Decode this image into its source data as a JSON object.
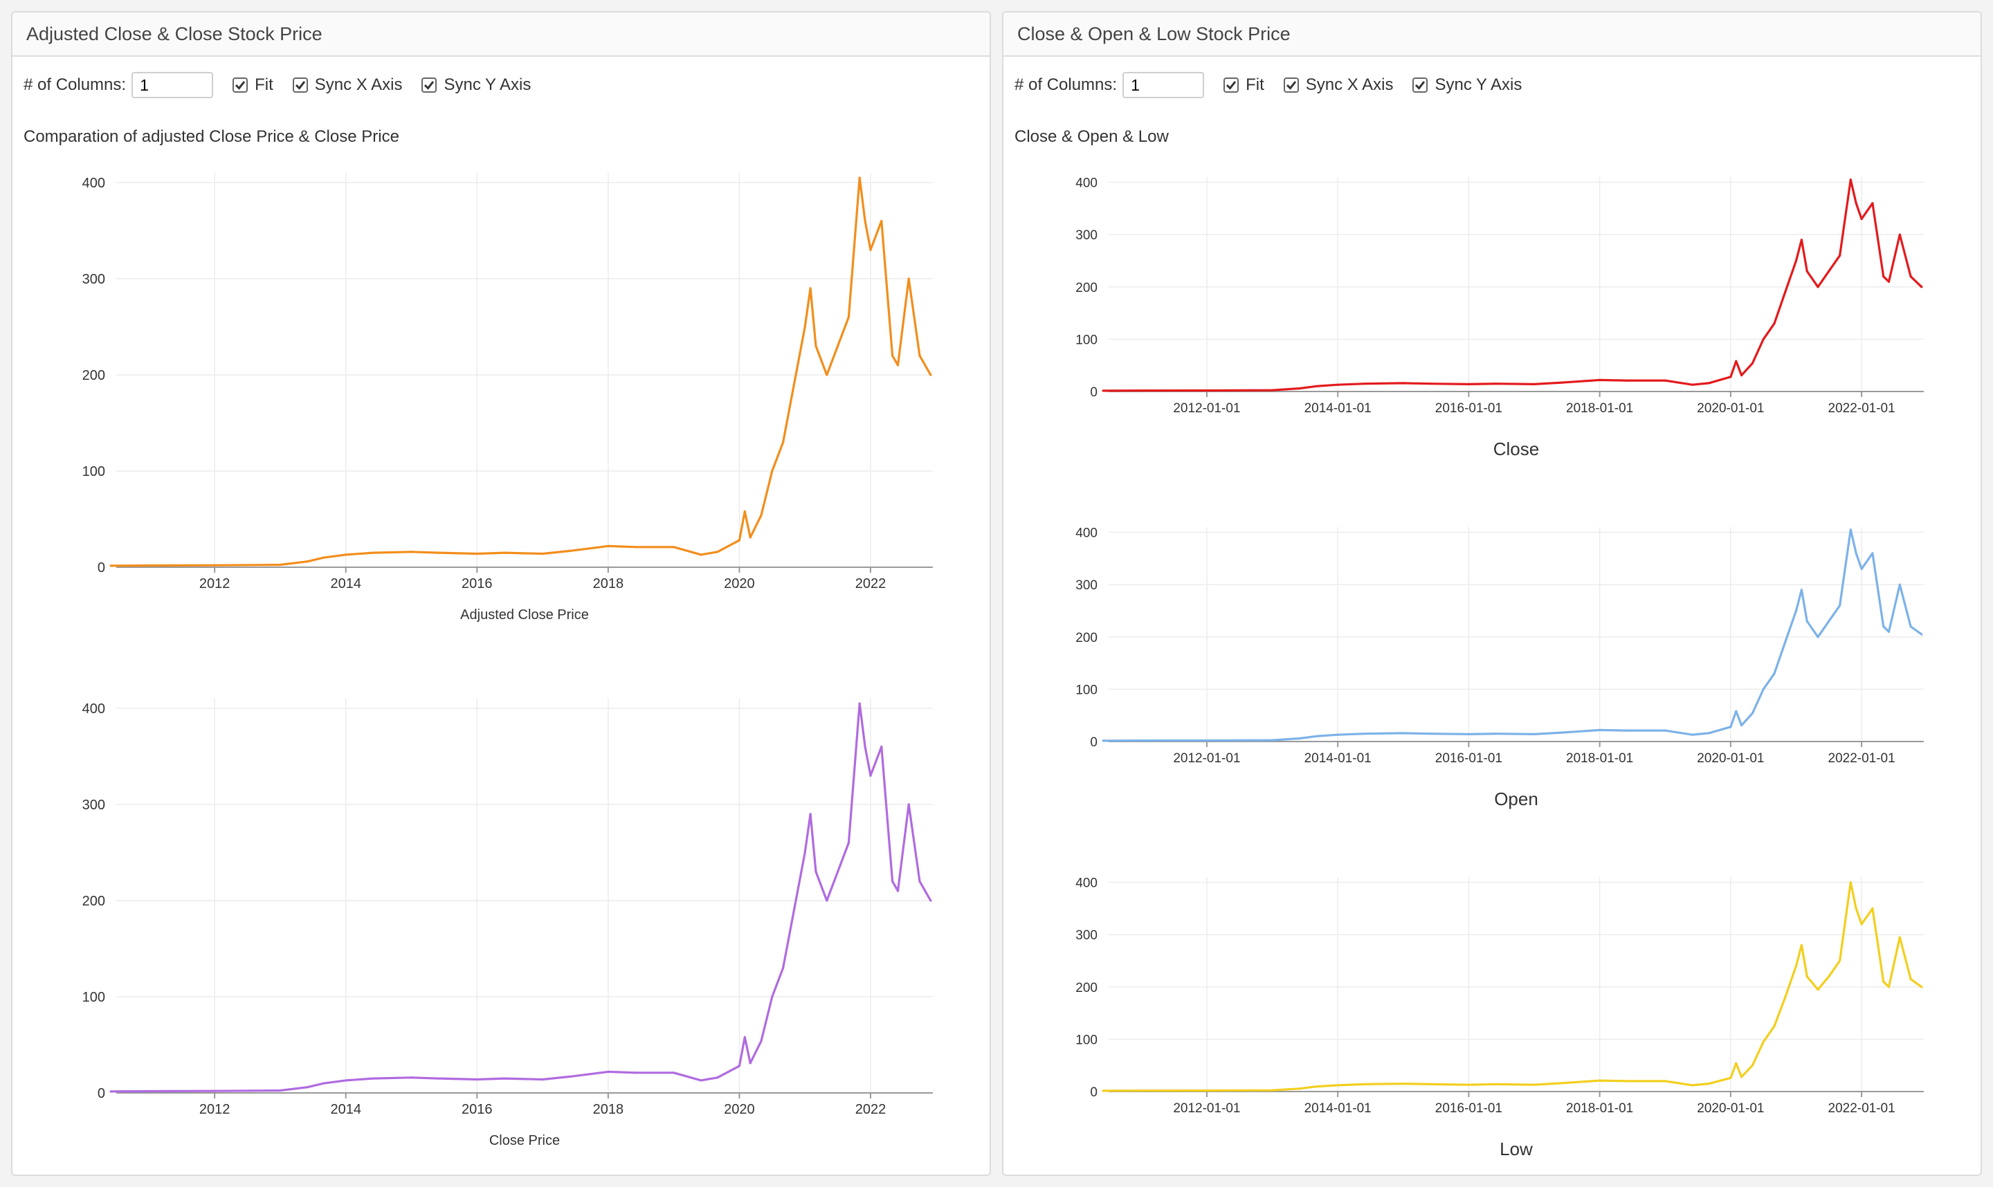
{
  "left_panel": {
    "title": "Adjusted Close & Close Stock Price",
    "columns_label": "# of Columns:",
    "columns_value": "1",
    "fit_label": "Fit",
    "sync_x_label": "Sync X Axis",
    "sync_y_label": "Sync Y Axis",
    "chart_title": "Comparation of adjusted Close Price & Close Price"
  },
  "right_panel": {
    "title": "Close & Open & Low Stock Price",
    "columns_label": "# of Columns:",
    "columns_value": "1",
    "fit_label": "Fit",
    "sync_x_label": "Sync X Axis",
    "sync_y_label": "Sync Y Axis",
    "chart_title": "Close & Open & Low"
  },
  "chart_data": [
    {
      "type": "line",
      "name": "Adjusted Close Price",
      "color": "#f28e1c",
      "x": [
        "2010-06",
        "2011-01",
        "2012-01",
        "2013-01",
        "2013-06",
        "2013-09",
        "2014-01",
        "2014-06",
        "2015-01",
        "2015-06",
        "2016-01",
        "2016-06",
        "2017-01",
        "2017-06",
        "2018-01",
        "2018-06",
        "2019-01",
        "2019-06",
        "2019-09",
        "2020-01",
        "2020-02",
        "2020-03",
        "2020-05",
        "2020-07",
        "2020-09",
        "2020-11",
        "2021-01",
        "2021-02",
        "2021-03",
        "2021-05",
        "2021-07",
        "2021-09",
        "2021-11",
        "2021-12",
        "2022-01",
        "2022-03",
        "2022-05",
        "2022-06",
        "2022-08",
        "2022-10",
        "2022-12"
      ],
      "y": [
        1.5,
        1.8,
        2,
        2.5,
        6,
        10,
        13,
        15,
        16,
        15,
        14,
        15,
        14,
        17,
        22,
        21,
        21,
        13,
        16,
        28,
        58,
        31,
        54,
        100,
        130,
        190,
        250,
        290,
        230,
        200,
        230,
        260,
        405,
        360,
        330,
        360,
        220,
        210,
        300,
        220,
        200
      ],
      "x_ticks": [
        "2012",
        "2014",
        "2016",
        "2018",
        "2020",
        "2022"
      ],
      "y_ticks": [
        0,
        100,
        200,
        300,
        400
      ],
      "xlabel": "Adjusted Close Price",
      "ylim": [
        0,
        410
      ]
    },
    {
      "type": "line",
      "name": "Close Price",
      "color": "#b06be0",
      "x": [
        "2010-06",
        "2011-01",
        "2012-01",
        "2013-01",
        "2013-06",
        "2013-09",
        "2014-01",
        "2014-06",
        "2015-01",
        "2015-06",
        "2016-01",
        "2016-06",
        "2017-01",
        "2017-06",
        "2018-01",
        "2018-06",
        "2019-01",
        "2019-06",
        "2019-09",
        "2020-01",
        "2020-02",
        "2020-03",
        "2020-05",
        "2020-07",
        "2020-09",
        "2020-11",
        "2021-01",
        "2021-02",
        "2021-03",
        "2021-05",
        "2021-07",
        "2021-09",
        "2021-11",
        "2021-12",
        "2022-01",
        "2022-03",
        "2022-05",
        "2022-06",
        "2022-08",
        "2022-10",
        "2022-12"
      ],
      "y": [
        1.5,
        1.8,
        2,
        2.5,
        6,
        10,
        13,
        15,
        16,
        15,
        14,
        15,
        14,
        17,
        22,
        21,
        21,
        13,
        16,
        28,
        58,
        31,
        54,
        100,
        130,
        190,
        250,
        290,
        230,
        200,
        230,
        260,
        405,
        360,
        330,
        360,
        220,
        210,
        300,
        220,
        200
      ],
      "x_ticks": [
        "2012",
        "2014",
        "2016",
        "2018",
        "2020",
        "2022"
      ],
      "y_ticks": [
        0,
        100,
        200,
        300,
        400
      ],
      "xlabel": "Close Price",
      "ylim": [
        0,
        410
      ]
    },
    {
      "type": "line",
      "name": "Close",
      "color": "#e31a1c",
      "x": [
        "2010-06",
        "2011-01",
        "2012-01",
        "2013-01",
        "2013-06",
        "2013-09",
        "2014-01",
        "2014-06",
        "2015-01",
        "2015-06",
        "2016-01",
        "2016-06",
        "2017-01",
        "2017-06",
        "2018-01",
        "2018-06",
        "2019-01",
        "2019-06",
        "2019-09",
        "2020-01",
        "2020-02",
        "2020-03",
        "2020-05",
        "2020-07",
        "2020-09",
        "2020-11",
        "2021-01",
        "2021-02",
        "2021-03",
        "2021-05",
        "2021-07",
        "2021-09",
        "2021-11",
        "2021-12",
        "2022-01",
        "2022-03",
        "2022-05",
        "2022-06",
        "2022-08",
        "2022-10",
        "2022-12"
      ],
      "y": [
        1.5,
        1.8,
        2,
        2.5,
        6,
        10,
        13,
        15,
        16,
        15,
        14,
        15,
        14,
        17,
        22,
        21,
        21,
        13,
        16,
        28,
        58,
        31,
        54,
        100,
        130,
        190,
        250,
        290,
        230,
        200,
        230,
        260,
        405,
        360,
        330,
        360,
        220,
        210,
        300,
        220,
        200
      ],
      "x_ticks": [
        "2012-01-01",
        "2014-01-01",
        "2016-01-01",
        "2018-01-01",
        "2020-01-01",
        "2022-01-01"
      ],
      "y_ticks": [
        0,
        100,
        200,
        300,
        400
      ],
      "xlabel": "Close",
      "ylim": [
        0,
        410
      ]
    },
    {
      "type": "line",
      "name": "Open",
      "color": "#7cb2e8",
      "x": [
        "2010-06",
        "2011-01",
        "2012-01",
        "2013-01",
        "2013-06",
        "2013-09",
        "2014-01",
        "2014-06",
        "2015-01",
        "2015-06",
        "2016-01",
        "2016-06",
        "2017-01",
        "2017-06",
        "2018-01",
        "2018-06",
        "2019-01",
        "2019-06",
        "2019-09",
        "2020-01",
        "2020-02",
        "2020-03",
        "2020-05",
        "2020-07",
        "2020-09",
        "2020-11",
        "2021-01",
        "2021-02",
        "2021-03",
        "2021-05",
        "2021-07",
        "2021-09",
        "2021-11",
        "2021-12",
        "2022-01",
        "2022-03",
        "2022-05",
        "2022-06",
        "2022-08",
        "2022-10",
        "2022-12"
      ],
      "y": [
        1.5,
        1.8,
        2,
        2.5,
        6,
        10,
        13,
        15,
        16,
        15,
        14,
        15,
        14,
        17,
        22,
        21,
        21,
        13,
        16,
        28,
        58,
        31,
        54,
        100,
        130,
        190,
        250,
        290,
        230,
        200,
        230,
        260,
        405,
        360,
        330,
        360,
        220,
        210,
        300,
        220,
        205
      ],
      "x_ticks": [
        "2012-01-01",
        "2014-01-01",
        "2016-01-01",
        "2018-01-01",
        "2020-01-01",
        "2022-01-01"
      ],
      "y_ticks": [
        0,
        100,
        200,
        300,
        400
      ],
      "xlabel": "Open",
      "ylim": [
        0,
        410
      ]
    },
    {
      "type": "line",
      "name": "Low",
      "color": "#f2cf1f",
      "x": [
        "2010-06",
        "2011-01",
        "2012-01",
        "2013-01",
        "2013-06",
        "2013-09",
        "2014-01",
        "2014-06",
        "2015-01",
        "2015-06",
        "2016-01",
        "2016-06",
        "2017-01",
        "2017-06",
        "2018-01",
        "2018-06",
        "2019-01",
        "2019-06",
        "2019-09",
        "2020-01",
        "2020-02",
        "2020-03",
        "2020-05",
        "2020-07",
        "2020-09",
        "2020-11",
        "2021-01",
        "2021-02",
        "2021-03",
        "2021-05",
        "2021-07",
        "2021-09",
        "2021-11",
        "2021-12",
        "2022-01",
        "2022-03",
        "2022-05",
        "2022-06",
        "2022-08",
        "2022-10",
        "2022-12"
      ],
      "y": [
        1.4,
        1.7,
        1.9,
        2.4,
        5.5,
        9.5,
        12,
        14,
        15,
        14,
        13,
        14,
        13,
        16,
        21,
        20,
        20,
        12,
        15,
        26,
        54,
        28,
        50,
        95,
        125,
        180,
        240,
        280,
        220,
        195,
        220,
        250,
        400,
        350,
        320,
        350,
        210,
        200,
        295,
        215,
        200
      ],
      "x_ticks": [
        "2012-01-01",
        "2014-01-01",
        "2016-01-01",
        "2018-01-01",
        "2020-01-01",
        "2022-01-01"
      ],
      "y_ticks": [
        0,
        100,
        200,
        300,
        400
      ],
      "xlabel": "Low",
      "ylim": [
        0,
        410
      ]
    }
  ]
}
